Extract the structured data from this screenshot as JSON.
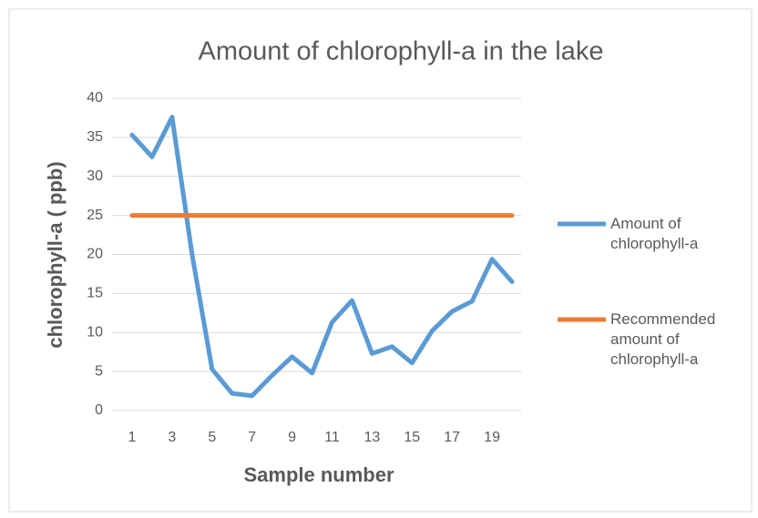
{
  "chart_data": {
    "type": "line",
    "title": "Amount of chlorophyll-a in the lake",
    "x_label": "Sample number",
    "y_label": "chlorophyll-a  ( ppb)",
    "categories": [
      1,
      null,
      3,
      null,
      5,
      null,
      7,
      null,
      9,
      null,
      11,
      null,
      13,
      null,
      15,
      null,
      17,
      null,
      19,
      null
    ],
    "series": [
      {
        "name": "Amount of chlorophyll-a",
        "color": "#5b9bd5",
        "values": [
          35.3,
          32.5,
          37.6,
          20,
          5.3,
          2.2,
          1.9,
          4.5,
          6.9,
          4.8,
          11.3,
          14.1,
          7.3,
          8.2,
          6.1,
          10.2,
          12.7,
          14,
          19.4,
          16.5
        ]
      },
      {
        "name": "Recommended amount of chlorophyll-a",
        "color": "#ed7d31",
        "values": [
          25,
          25,
          25,
          25,
          25,
          25,
          25,
          25,
          25,
          25,
          25,
          25,
          25,
          25,
          25,
          25,
          25,
          25,
          25,
          25
        ]
      }
    ],
    "ylim": [
      0,
      40
    ],
    "yticks": [
      0,
      5,
      10,
      15,
      20,
      25,
      30,
      35,
      40
    ],
    "grid": true,
    "legend": "right"
  }
}
